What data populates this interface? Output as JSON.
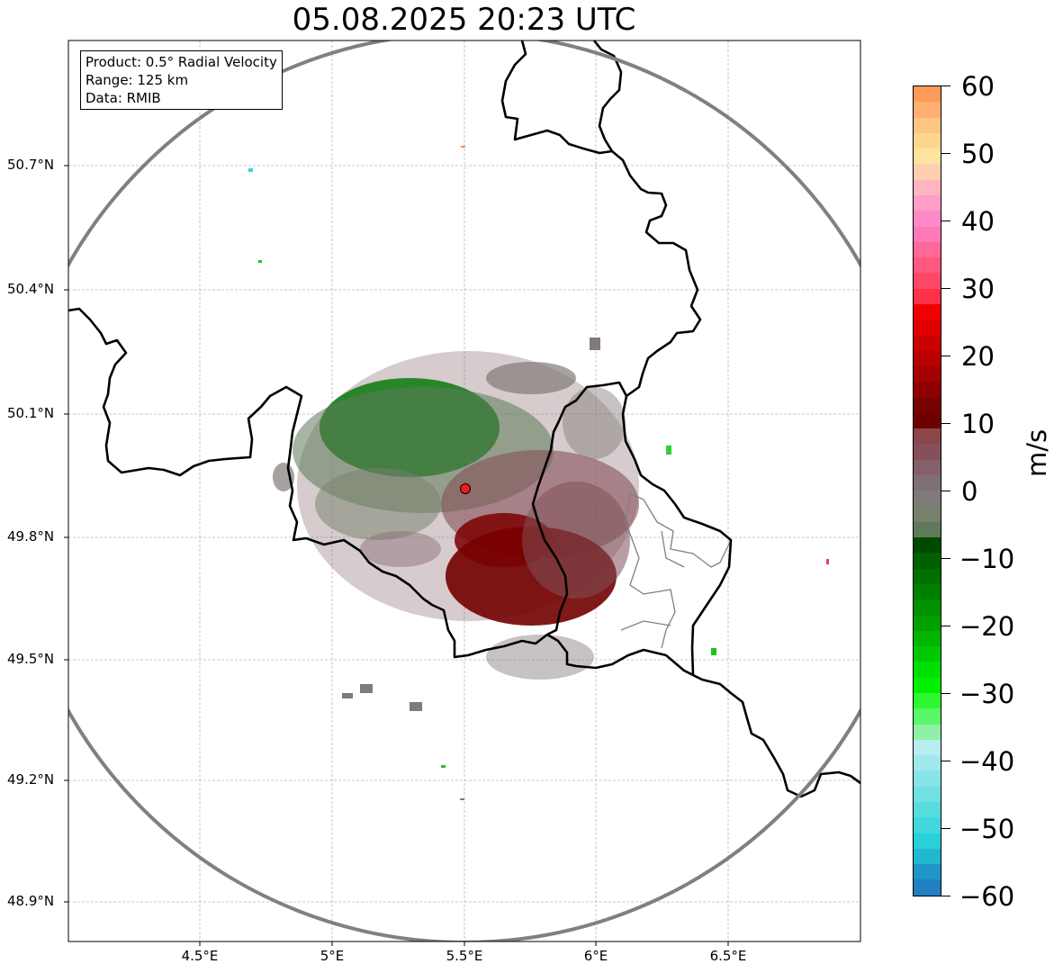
{
  "title": "05.08.2025 20:23 UTC",
  "info": {
    "product": "Product: 0.5° Radial Velocity",
    "range": "Range: 125 km",
    "data": "Data: RMIB"
  },
  "lat_ticks": [
    "50.7°N",
    "50.4°N",
    "50.1°N",
    "49.8°N",
    "49.5°N",
    "49.2°N",
    "48.9°N"
  ],
  "lon_ticks": [
    "4.5°E",
    "5°E",
    "5.5°E",
    "6°E",
    "6.5°E"
  ],
  "colorbar": {
    "unit": "m/s",
    "labels": [
      "60",
      "50",
      "40",
      "30",
      "20",
      "10",
      "0",
      "−10",
      "−20",
      "−30",
      "−40",
      "−50",
      "−60"
    ],
    "colors": [
      "#ff9a5a",
      "#ffb070",
      "#ffc585",
      "#ffd690",
      "#ffe3a0",
      "#ffd0b0",
      "#ffb5c0",
      "#ff9ec8",
      "#ff88c8",
      "#ff78b8",
      "#ff6898",
      "#ff5880",
      "#ff4868",
      "#ff3048",
      "#f00000",
      "#e00000",
      "#cc0000",
      "#b80000",
      "#a30000",
      "#8e0000",
      "#780000",
      "#6e0000",
      "#8a4648",
      "#865058",
      "#84606a",
      "#7f7078",
      "#807a78",
      "#76806c",
      "#5e7a5a",
      "#004a00",
      "#006000",
      "#007000",
      "#008000",
      "#009000",
      "#00a000",
      "#00b400",
      "#00c800",
      "#00e000",
      "#00f000",
      "#30f830",
      "#58f868",
      "#90f0a8",
      "#b8ecf0",
      "#a0e8ec",
      "#88e4e8",
      "#70e0e4",
      "#58dce0",
      "#40d8dc",
      "#28d0d8",
      "#20b8d0",
      "#2096c8",
      "#2080c0"
    ]
  }
}
